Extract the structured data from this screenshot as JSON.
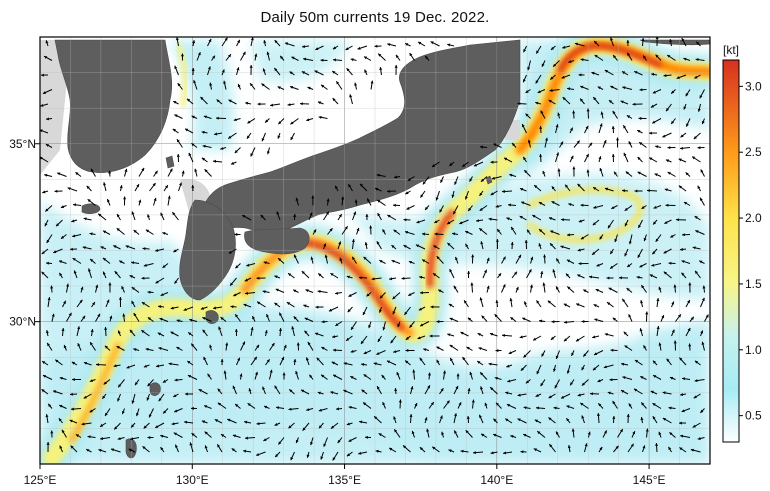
{
  "title": "Daily 50m currents 19 Dec. 2022.",
  "map": {
    "lon_range": [
      125,
      147
    ],
    "lat_range": [
      26,
      38
    ],
    "lon_ticks": [
      {
        "value": 125,
        "label": "125°E"
      },
      {
        "value": 130,
        "label": "130°E"
      },
      {
        "value": 135,
        "label": "135°E"
      },
      {
        "value": 140,
        "label": "140°E"
      },
      {
        "value": 145,
        "label": "145°E"
      }
    ],
    "lat_ticks": [
      {
        "value": 35,
        "label": "35°N"
      },
      {
        "value": 30,
        "label": "30°N"
      }
    ],
    "grid": true,
    "colors": {
      "land": "#5f5f5f",
      "shallow_shelf": "#d9d9d9",
      "sea": "#ffffff",
      "weak_current": "#aee9f2",
      "moderate_current": "#f3f08a",
      "strong_current": "#ff8a00",
      "max_current": "#d7301f",
      "arrow": "#000000"
    }
  },
  "colorbar": {
    "unit": "[kt]",
    "range": [
      0.3,
      3.2
    ],
    "ticks": [
      {
        "value": 0.5,
        "label": "0.5"
      },
      {
        "value": 1.0,
        "label": "1.0"
      },
      {
        "value": 1.5,
        "label": "1.5"
      },
      {
        "value": 2.0,
        "label": "2.0"
      },
      {
        "value": 2.5,
        "label": "2.5"
      },
      {
        "value": 3.0,
        "label": "3.0"
      }
    ],
    "stops": [
      {
        "value": 0.3,
        "color": "#ffffff"
      },
      {
        "value": 0.7,
        "color": "#a6ecf5"
      },
      {
        "value": 1.1,
        "color": "#c6f2ee"
      },
      {
        "value": 1.5,
        "color": "#f7f58a"
      },
      {
        "value": 2.0,
        "color": "#ffe24a"
      },
      {
        "value": 2.5,
        "color": "#ff9a1a"
      },
      {
        "value": 3.2,
        "color": "#d7301f"
      }
    ]
  }
}
